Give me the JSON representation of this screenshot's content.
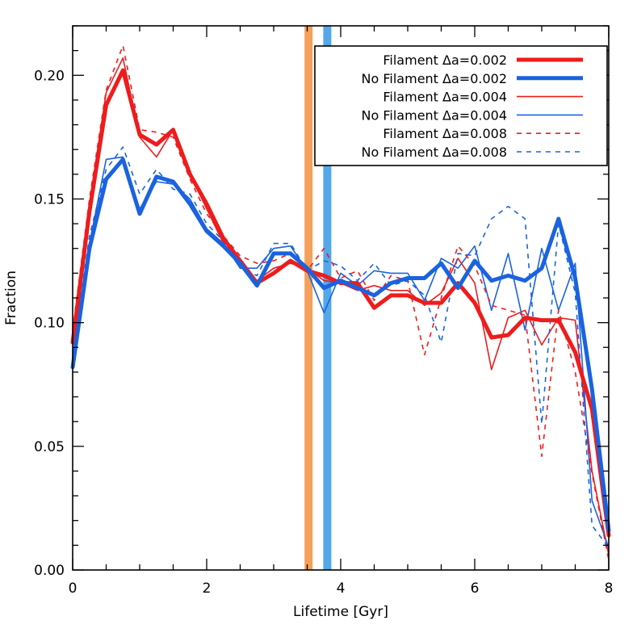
{
  "chart_data": {
    "type": "line",
    "xlabel": "Lifetime [Gyr]",
    "ylabel": "Fraction",
    "xlim": [
      0,
      8
    ],
    "ylim": [
      0,
      0.22
    ],
    "xticks": [
      "0",
      "2",
      "4",
      "6",
      "8"
    ],
    "yticks": [
      "0.00",
      "0.05",
      "0.10",
      "0.15",
      "0.20"
    ],
    "grid": false,
    "legend_position": "top-right",
    "x": [
      0,
      0.25,
      0.5,
      0.75,
      1,
      1.25,
      1.5,
      1.75,
      2,
      2.25,
      2.5,
      2.75,
      3,
      3.25,
      3.5,
      3.75,
      4,
      4.25,
      4.5,
      4.75,
      5,
      5.25,
      5.5,
      5.75,
      6,
      6.25,
      6.5,
      6.75,
      7,
      7.25,
      7.5,
      7.75,
      8
    ],
    "vertical_bands": [
      {
        "x": 3.52,
        "color": "#f5a05a"
      },
      {
        "x": 3.8,
        "color": "#52a8ea"
      }
    ],
    "series": [
      {
        "name": "Filament Δa=0.002",
        "color": "#ee1c1c",
        "width": 5.0,
        "dash": "",
        "values": [
          0.092,
          0.145,
          0.188,
          0.202,
          0.176,
          0.172,
          0.178,
          0.16,
          0.148,
          0.134,
          0.125,
          0.116,
          0.12,
          0.125,
          0.121,
          0.119,
          0.116,
          0.116,
          0.106,
          0.111,
          0.111,
          0.108,
          0.108,
          0.116,
          0.108,
          0.094,
          0.095,
          0.102,
          0.101,
          0.101,
          0.088,
          0.065,
          0.014
        ]
      },
      {
        "name": "No Filament Δa=0.002",
        "color": "#1a63e0",
        "width": 5.0,
        "dash": "",
        "values": [
          0.082,
          0.13,
          0.158,
          0.166,
          0.144,
          0.159,
          0.157,
          0.148,
          0.137,
          0.131,
          0.124,
          0.115,
          0.128,
          0.128,
          0.122,
          0.114,
          0.117,
          0.114,
          0.111,
          0.116,
          0.118,
          0.118,
          0.124,
          0.114,
          0.125,
          0.117,
          0.119,
          0.117,
          0.122,
          0.142,
          0.118,
          0.073,
          0.016
        ]
      },
      {
        "name": "Filament Δa=0.004",
        "color": "#ee1c1c",
        "width": 1.6,
        "dash": "",
        "values": [
          0.095,
          0.148,
          0.193,
          0.207,
          0.175,
          0.167,
          0.178,
          0.16,
          0.146,
          0.132,
          0.123,
          0.117,
          0.122,
          0.124,
          0.122,
          0.117,
          0.116,
          0.113,
          0.115,
          0.113,
          0.113,
          0.107,
          0.112,
          0.126,
          0.116,
          0.081,
          0.102,
          0.105,
          0.091,
          0.102,
          0.101,
          0.04,
          0.006
        ]
      },
      {
        "name": "No Filament Δa=0.004",
        "color": "#1a63e0",
        "width": 1.6,
        "dash": "",
        "values": [
          0.086,
          0.132,
          0.166,
          0.167,
          0.146,
          0.157,
          0.156,
          0.15,
          0.138,
          0.132,
          0.122,
          0.122,
          0.13,
          0.131,
          0.121,
          0.104,
          0.12,
          0.115,
          0.121,
          0.12,
          0.12,
          0.109,
          0.126,
          0.122,
          0.131,
          0.105,
          0.128,
          0.097,
          0.13,
          0.105,
          0.124,
          0.028,
          0.009
        ]
      },
      {
        "name": "Filament Δa=0.008",
        "color": "#ee1c1c",
        "width": 1.6,
        "dash": "6,6",
        "values": [
          0.097,
          0.15,
          0.194,
          0.212,
          0.178,
          0.177,
          0.175,
          0.158,
          0.144,
          0.135,
          0.127,
          0.124,
          0.125,
          0.128,
          0.121,
          0.13,
          0.118,
          0.121,
          0.109,
          0.119,
          0.117,
          0.087,
          0.11,
          0.131,
          0.123,
          0.107,
          0.105,
          0.103,
          0.046,
          0.105,
          0.08,
          0.039,
          0.004
        ]
      },
      {
        "name": "No Filament Δa=0.008",
        "color": "#1a63e0",
        "width": 1.6,
        "dash": "6,6",
        "values": [
          0.087,
          0.135,
          0.162,
          0.171,
          0.152,
          0.162,
          0.154,
          0.152,
          0.14,
          0.133,
          0.122,
          0.119,
          0.132,
          0.132,
          0.121,
          0.125,
          0.123,
          0.117,
          0.124,
          0.115,
          0.117,
          0.111,
          0.092,
          0.128,
          0.127,
          0.142,
          0.147,
          0.142,
          0.059,
          0.14,
          0.112,
          0.018,
          0.009
        ]
      }
    ]
  }
}
